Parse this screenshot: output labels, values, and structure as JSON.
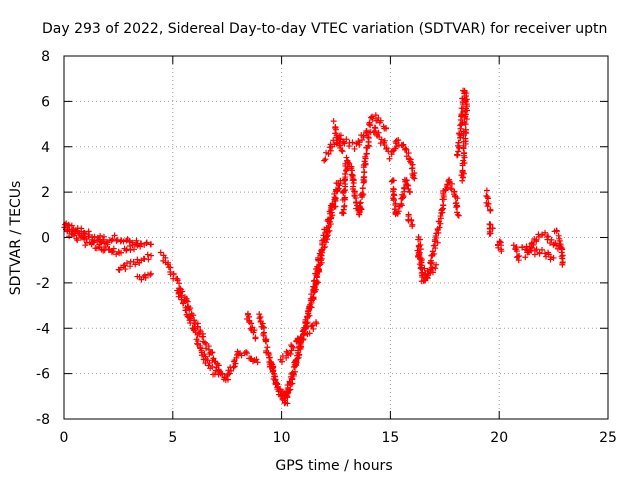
{
  "chart_data": {
    "type": "scatter",
    "title": "Day 293 of 2022, Sidereal Day-to-day VTEC variation (SDTVAR) for receiver uptn",
    "xlabel": "GPS time / hours",
    "ylabel": "SDTVAR / TECUs",
    "xlim": [
      0,
      25
    ],
    "ylim": [
      -8,
      8
    ],
    "xticks": [
      0,
      5,
      10,
      15,
      20,
      25
    ],
    "yticks": [
      -8,
      -6,
      -4,
      -2,
      0,
      2,
      4,
      6,
      8
    ],
    "grid": true,
    "marker": "+",
    "marker_color": "#ff0000",
    "series": [
      {
        "name": "SDTVAR",
        "traces": [
          [
            [
              0,
              0.5
            ],
            [
              0.5,
              0.4
            ],
            [
              1.0,
              0.2
            ],
            [
              1.5,
              0.0
            ],
            [
              2.0,
              -0.1
            ],
            [
              2.5,
              0.0
            ],
            [
              3.0,
              -0.2
            ],
            [
              3.5,
              -0.3
            ],
            [
              4.0,
              -0.3
            ]
          ],
          [
            [
              0,
              0.3
            ],
            [
              0.5,
              0.0
            ],
            [
              1.0,
              -0.2
            ],
            [
              1.5,
              -0.4
            ],
            [
              2.0,
              -0.6
            ],
            [
              2.5,
              -0.6
            ],
            [
              3.0,
              -0.5
            ],
            [
              3.5,
              -0.4
            ]
          ],
          [
            [
              0,
              0.6
            ],
            [
              0.5,
              0.3
            ],
            [
              1.0,
              0.0
            ],
            [
              1.5,
              -0.3
            ],
            [
              2.0,
              -0.3
            ]
          ],
          [
            [
              2.5,
              -1.5
            ],
            [
              3.0,
              -1.2
            ],
            [
              3.5,
              -1.0
            ],
            [
              4.0,
              -0.8
            ]
          ],
          [
            [
              3.4,
              -1.8
            ],
            [
              3.7,
              -1.7
            ],
            [
              4.0,
              -1.6
            ]
          ],
          [
            [
              4.5,
              -0.8
            ],
            [
              5.0,
              -1.6
            ],
            [
              5.5,
              -2.6
            ],
            [
              6.0,
              -3.6
            ],
            [
              6.5,
              -4.6
            ],
            [
              7.0,
              -5.6
            ],
            [
              7.4,
              -6.3
            ],
            [
              7.8,
              -5.6
            ],
            [
              8.0,
              -5.0
            ],
            [
              8.5,
              -5.2
            ],
            [
              8.9,
              -5.5
            ]
          ],
          [
            [
              5.2,
              -2.2
            ],
            [
              5.6,
              -3.2
            ],
            [
              6.0,
              -4.2
            ],
            [
              6.4,
              -5.2
            ],
            [
              6.8,
              -5.9
            ],
            [
              7.2,
              -6.0
            ]
          ],
          [
            [
              8.4,
              -3.4
            ],
            [
              8.6,
              -4.0
            ],
            [
              8.8,
              -4.4
            ]
          ],
          [
            [
              9.0,
              -3.4
            ],
            [
              9.3,
              -4.8
            ],
            [
              9.6,
              -6.0
            ],
            [
              10.0,
              -7.0
            ],
            [
              10.2,
              -7.3
            ],
            [
              10.4,
              -6.5
            ],
            [
              10.8,
              -5.0
            ],
            [
              11.2,
              -3.5
            ],
            [
              11.6,
              -2.0
            ],
            [
              12.0,
              -0.2
            ],
            [
              12.4,
              1.4
            ],
            [
              12.7,
              2.5
            ]
          ],
          [
            [
              9.4,
              -5.2
            ],
            [
              9.8,
              -6.6
            ],
            [
              10.2,
              -7.0
            ],
            [
              10.6,
              -5.8
            ],
            [
              11.0,
              -4.2
            ],
            [
              11.4,
              -2.6
            ],
            [
              11.8,
              -0.6
            ],
            [
              12.2,
              1.0
            ],
            [
              12.6,
              2.4
            ]
          ],
          [
            [
              10.0,
              -5.4
            ],
            [
              10.4,
              -5.0
            ],
            [
              10.8,
              -4.4
            ],
            [
              11.4,
              -4.0
            ],
            [
              11.6,
              -3.8
            ]
          ],
          [
            [
              12.8,
              1.0
            ],
            [
              13.0,
              3.5
            ],
            [
              13.2,
              3.0
            ],
            [
              13.4,
              1.5
            ],
            [
              13.6,
              1.0
            ],
            [
              13.8,
              3.0
            ],
            [
              14.0,
              4.5
            ],
            [
              14.3,
              4.8
            ],
            [
              14.6,
              4.3
            ],
            [
              14.9,
              3.8
            ]
          ],
          [
            [
              12.0,
              3.5
            ],
            [
              12.3,
              4.0
            ],
            [
              12.6,
              4.5
            ],
            [
              13.0,
              4.2
            ],
            [
              13.4,
              4.0
            ],
            [
              13.8,
              4.5
            ],
            [
              14.2,
              5.3
            ],
            [
              14.5,
              5.2
            ],
            [
              14.8,
              4.8
            ]
          ],
          [
            [
              12.4,
              5.0
            ],
            [
              12.6,
              4.4
            ],
            [
              12.8,
              3.8
            ]
          ],
          [
            [
              15.0,
              3.5
            ],
            [
              15.3,
              4.3
            ],
            [
              15.6,
              4.0
            ],
            [
              15.9,
              3.5
            ],
            [
              16.1,
              2.6
            ]
          ],
          [
            [
              15.1,
              2.5
            ],
            [
              15.2,
              1.5
            ],
            [
              15.3,
              1.0
            ],
            [
              15.5,
              1.5
            ],
            [
              15.7,
              2.5
            ],
            [
              15.9,
              2.0
            ]
          ],
          [
            [
              15.8,
              1.0
            ],
            [
              16.0,
              0.5
            ]
          ],
          [
            [
              16.3,
              0.0
            ],
            [
              16.4,
              -1.2
            ],
            [
              16.5,
              -1.9
            ],
            [
              16.7,
              -1.8
            ],
            [
              16.9,
              -1.0
            ],
            [
              17.1,
              -0.2
            ],
            [
              17.3,
              0.8
            ],
            [
              17.5,
              2.1
            ],
            [
              17.7,
              2.6
            ],
            [
              18.0,
              1.8
            ],
            [
              18.1,
              1.0
            ]
          ],
          [
            [
              16.2,
              -0.6
            ],
            [
              16.5,
              -1.4
            ],
            [
              16.8,
              -1.6
            ],
            [
              17.1,
              -1.2
            ]
          ],
          [
            [
              18.1,
              3.5
            ],
            [
              18.2,
              4.5
            ],
            [
              18.3,
              5.5
            ],
            [
              18.4,
              6.5
            ],
            [
              18.5,
              6.0
            ],
            [
              18.4,
              4.0
            ],
            [
              18.3,
              2.5
            ]
          ],
          [
            [
              19.4,
              2.0
            ],
            [
              19.5,
              1.5
            ],
            [
              19.6,
              1.2
            ]
          ],
          [
            [
              19.5,
              0.6
            ],
            [
              19.6,
              0.2
            ],
            [
              19.7,
              0.4
            ]
          ],
          [
            [
              19.9,
              -0.4
            ],
            [
              20.0,
              -0.2
            ],
            [
              20.1,
              -0.6
            ]
          ],
          [
            [
              20.7,
              -0.3
            ],
            [
              20.8,
              -0.6
            ],
            [
              20.9,
              -1.0
            ]
          ],
          [
            [
              21.0,
              -0.3
            ],
            [
              21.3,
              -0.5
            ],
            [
              21.6,
              -0.7
            ],
            [
              21.9,
              -0.6
            ],
            [
              22.2,
              -0.8
            ],
            [
              22.5,
              -0.9
            ]
          ],
          [
            [
              21.2,
              -0.8
            ],
            [
              21.5,
              -0.4
            ],
            [
              21.8,
              0.0
            ],
            [
              22.1,
              0.1
            ],
            [
              22.4,
              -0.2
            ],
            [
              22.7,
              -0.5
            ]
          ],
          [
            [
              22.6,
              0.3
            ],
            [
              22.8,
              -0.3
            ],
            [
              22.9,
              -1.2
            ]
          ]
        ]
      }
    ]
  }
}
